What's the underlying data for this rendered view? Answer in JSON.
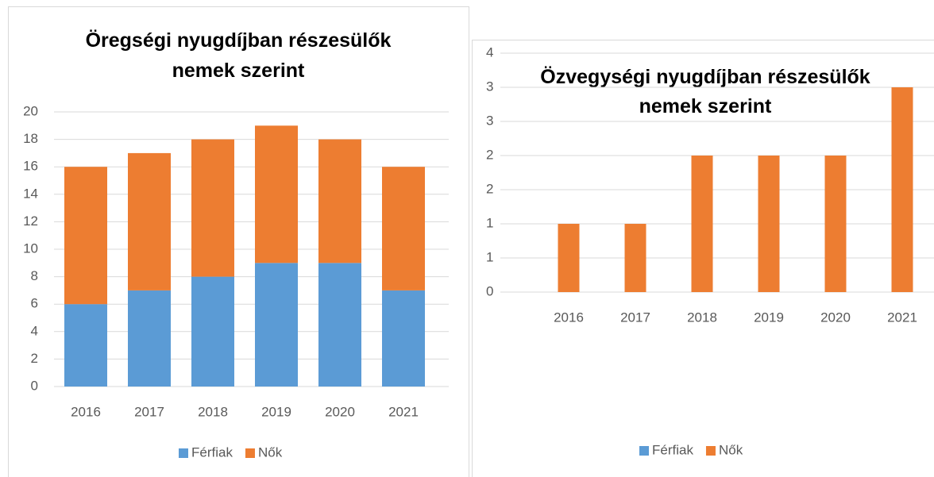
{
  "chart_data": [
    {
      "type": "stacked_bar",
      "title": "Öregségi nyugdíjban részesülők nemek szerint",
      "categories": [
        "2016",
        "2017",
        "2018",
        "2019",
        "2020",
        "2021"
      ],
      "series": [
        {
          "name": "Férfiak",
          "color": "#5b9bd5",
          "values": [
            6,
            7,
            8,
            9,
            9,
            7
          ]
        },
        {
          "name": "Nők",
          "color": "#ed7d31",
          "values": [
            10,
            10,
            10,
            10,
            9,
            9
          ]
        }
      ],
      "ylim": [
        0,
        20
      ],
      "yticks": [
        0,
        2,
        4,
        6,
        8,
        10,
        12,
        14,
        16,
        18,
        20
      ],
      "grid": true,
      "legend": "bottom"
    },
    {
      "type": "stacked_bar",
      "title": "Özvegységi nyugdíjban részesülők nemek szerint",
      "categories": [
        "2016",
        "2017",
        "2018",
        "2019",
        "2020",
        "2021"
      ],
      "series": [
        {
          "name": "Férfiak",
          "color": "#5b9bd5",
          "values": [
            0,
            0,
            0,
            0,
            0,
            0
          ]
        },
        {
          "name": "Nők",
          "color": "#ed7d31",
          "values": [
            1,
            1,
            2,
            2,
            2,
            3
          ]
        }
      ],
      "ylim": [
        0,
        3.5
      ],
      "yticks": [
        0,
        {
          "value": 0.5,
          "label": "1"
        },
        1,
        {
          "value": 1.5,
          "label": "2"
        },
        2,
        {
          "value": 2.5,
          "label": "3"
        },
        3,
        {
          "value": 3.5,
          "label": "4"
        }
      ],
      "grid": true,
      "legend": "bottom"
    }
  ]
}
